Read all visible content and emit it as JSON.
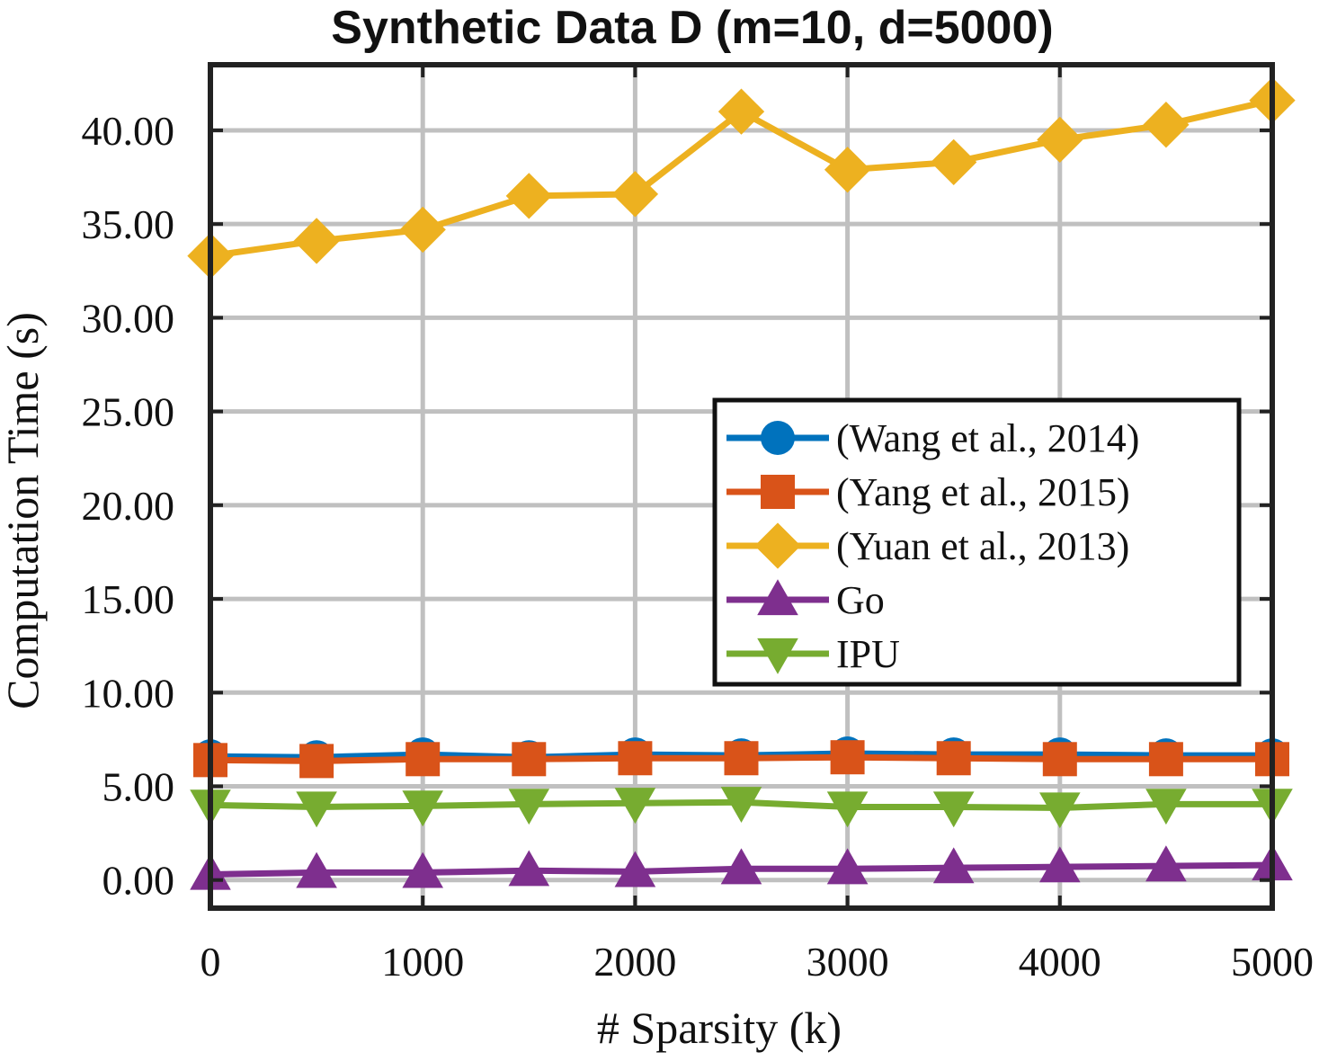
{
  "chart_data": {
    "type": "line",
    "title": "Synthetic Data D (m=10, d=5000)",
    "xlabel": "# Sparsity (k)",
    "ylabel": "Computation Time (s)",
    "x": [
      0,
      500,
      1000,
      1500,
      2000,
      2500,
      3000,
      3500,
      4000,
      4500,
      5000
    ],
    "xlim": [
      0,
      5000
    ],
    "ylim": [
      -1.5,
      43.5
    ],
    "xticks": [
      0,
      1000,
      2000,
      3000,
      4000,
      5000
    ],
    "xtick_labels": [
      "0",
      "1000",
      "2000",
      "3000",
      "4000",
      "5000"
    ],
    "yticks": [
      0,
      5,
      10,
      15,
      20,
      25,
      30,
      35,
      40
    ],
    "ytick_labels": [
      "0.00",
      "5.00",
      "10.00",
      "15.00",
      "20.00",
      "25.00",
      "30.00",
      "35.00",
      "40.00"
    ],
    "grid": true,
    "legend_position": "center-right",
    "series": [
      {
        "name": "(Wang et al., 2014)",
        "marker": "circle",
        "color": "#0072BD",
        "values": [
          6.6,
          6.55,
          6.7,
          6.55,
          6.7,
          6.65,
          6.75,
          6.7,
          6.7,
          6.65,
          6.65
        ]
      },
      {
        "name": "(Yang et al., 2015)",
        "marker": "square",
        "color": "#D95319",
        "values": [
          6.4,
          6.35,
          6.45,
          6.45,
          6.5,
          6.5,
          6.55,
          6.5,
          6.45,
          6.45,
          6.45
        ]
      },
      {
        "name": "(Yuan et al., 2013)",
        "marker": "diamond",
        "color": "#EDB120",
        "values": [
          33.3,
          34.1,
          34.7,
          36.5,
          36.6,
          41.0,
          37.9,
          38.3,
          39.5,
          40.3,
          41.6
        ]
      },
      {
        "name": "Go",
        "marker": "triangle-up",
        "color": "#7E2F8E",
        "values": [
          0.3,
          0.4,
          0.4,
          0.5,
          0.45,
          0.6,
          0.6,
          0.65,
          0.7,
          0.75,
          0.8
        ]
      },
      {
        "name": "IPU",
        "marker": "triangle-down",
        "color": "#77AC30",
        "values": [
          4.0,
          3.9,
          3.95,
          4.05,
          4.1,
          4.15,
          3.9,
          3.9,
          3.85,
          4.05,
          4.05
        ]
      }
    ]
  }
}
